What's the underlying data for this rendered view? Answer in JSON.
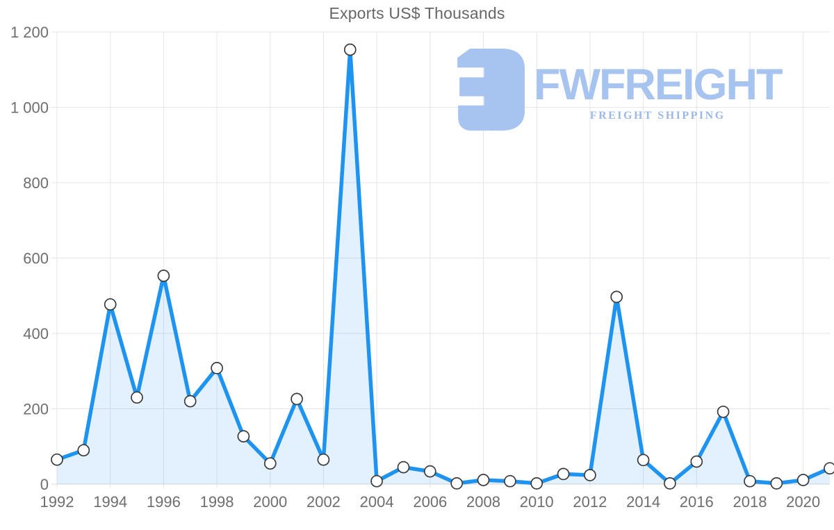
{
  "title": "Exports US$ Thousands",
  "watermark": {
    "brand": "FWFREIGHT",
    "tagline": "FREIGHT SHIPPING",
    "icon": "fwfreight-logo-icon",
    "brand_color": "#a7c3ef",
    "tagline_color": "#9cb8e9"
  },
  "chart_data": {
    "type": "area",
    "title": "Exports US$ Thousands",
    "x": [
      1992,
      1993,
      1994,
      1995,
      1996,
      1997,
      1998,
      1999,
      2000,
      2001,
      2002,
      2003,
      2004,
      2005,
      2006,
      2007,
      2008,
      2009,
      2010,
      2011,
      2012,
      2013,
      2014,
      2015,
      2016,
      2017,
      2018,
      2019,
      2020,
      2021
    ],
    "values": [
      65,
      90,
      477,
      230,
      553,
      220,
      308,
      127,
      55,
      226,
      65,
      1153,
      8,
      45,
      34,
      2,
      11,
      8,
      2,
      27,
      24,
      497,
      64,
      2,
      60,
      192,
      8,
      2,
      11,
      42
    ],
    "ylim": [
      0,
      1200
    ],
    "y_ticks": [
      0,
      200,
      400,
      600,
      800,
      1000,
      1200
    ],
    "y_tick_labels": [
      "0",
      "200",
      "400",
      "600",
      "800",
      "1 000",
      "1 200"
    ],
    "x_tick_step": 2,
    "x_tick_max": 2020,
    "grid": true,
    "legend": "none",
    "colors": {
      "line": "#1e93f0",
      "fill": "#2196f3",
      "fill_opacity": 0.13,
      "grid": "#e5e5e5",
      "axis": "#d9d9d9",
      "tick_text": "#6e6e6e",
      "marker_fill": "#ffffff",
      "marker_stroke": "#3a3a3a"
    }
  }
}
